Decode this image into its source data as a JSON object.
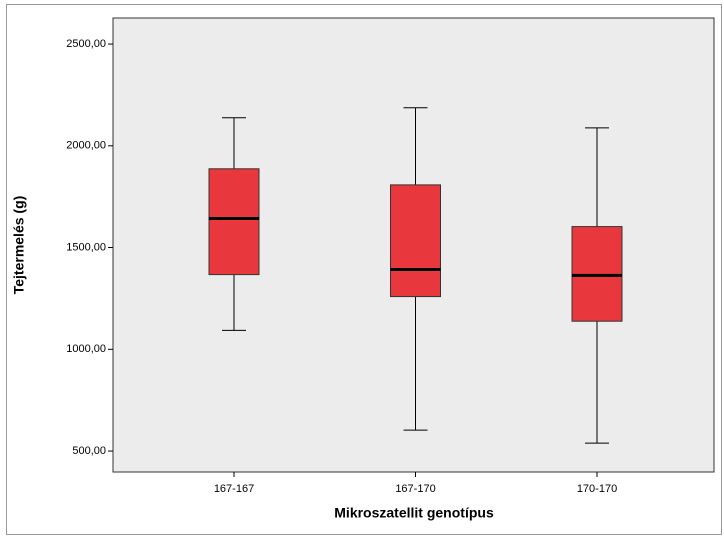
{
  "chart_data": {
    "type": "boxplot",
    "x_label": "Mikroszatellit genotípus",
    "y_label": "Tejtermelés (g)",
    "categories": [
      "167-167",
      "167-170",
      "170-170"
    ],
    "min": [
      1093,
      603,
      539
    ],
    "q1": [
      1367,
      1259,
      1138
    ],
    "median": [
      1643,
      1392,
      1363
    ],
    "q3": [
      1887,
      1808,
      1603
    ],
    "max": [
      2138,
      2187,
      2088
    ],
    "color": "#e8383d",
    "ylim": [
      397,
      2628
    ],
    "yticks": [
      {
        "value": 500,
        "label": "500,00"
      },
      {
        "value": 1000,
        "label": "1000,00"
      },
      {
        "value": 1500,
        "label": "1500,00"
      },
      {
        "value": 2000,
        "label": "2000,00"
      },
      {
        "value": 2500,
        "label": "2500,00"
      }
    ]
  }
}
